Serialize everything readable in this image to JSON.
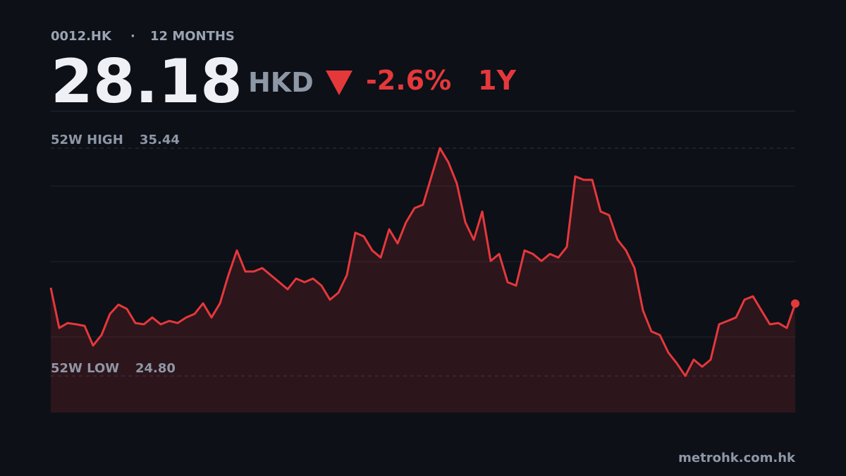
{
  "chart_data": {
    "type": "line",
    "ticker": "0012.HK",
    "period": "12 MONTHS",
    "price": 28.18,
    "currency": "HKD",
    "change": {
      "value": -2.6,
      "label": "-2.6%"
    },
    "range": "1Y",
    "high": {
      "label": "52W HIGH",
      "value": 35.44
    },
    "low": {
      "label": "52W LOW",
      "value": {
        "value": 24.8,
        "label": "24.80"
      }
    },
    "source": "metrohk.com.hk",
    "color": "#e5383b",
    "ylim": [
      23.09,
      37.19
    ],
    "grid_values": [
      26.62,
      30.14,
      33.67
    ],
    "values": [
      28.92,
      27.04,
      27.27,
      27.21,
      27.14,
      26.22,
      26.71,
      27.7,
      28.13,
      27.93,
      27.27,
      27.21,
      27.53,
      27.21,
      27.37,
      27.27,
      27.53,
      27.7,
      28.19,
      27.53,
      28.19,
      29.51,
      30.66,
      29.68,
      29.68,
      29.84,
      29.51,
      29.18,
      28.85,
      29.35,
      29.18,
      29.35,
      29.02,
      28.36,
      28.69,
      29.51,
      31.49,
      31.32,
      30.66,
      30.33,
      31.65,
      30.99,
      31.98,
      32.64,
      32.8,
      34.12,
      35.44,
      34.78,
      33.79,
      31.98,
      31.16,
      32.48,
      30.17,
      30.5,
      29.18,
      29.02,
      30.66,
      30.5,
      30.17,
      30.5,
      30.33,
      30.83,
      34.12,
      33.96,
      33.96,
      32.48,
      32.31,
      31.16,
      30.66,
      29.84,
      27.86,
      26.88,
      26.71,
      25.89,
      25.39,
      24.8,
      25.56,
      25.23,
      25.56,
      27.21,
      27.37,
      27.53,
      28.36,
      28.52,
      27.86,
      27.21,
      27.27,
      27.04,
      28.18
    ]
  }
}
